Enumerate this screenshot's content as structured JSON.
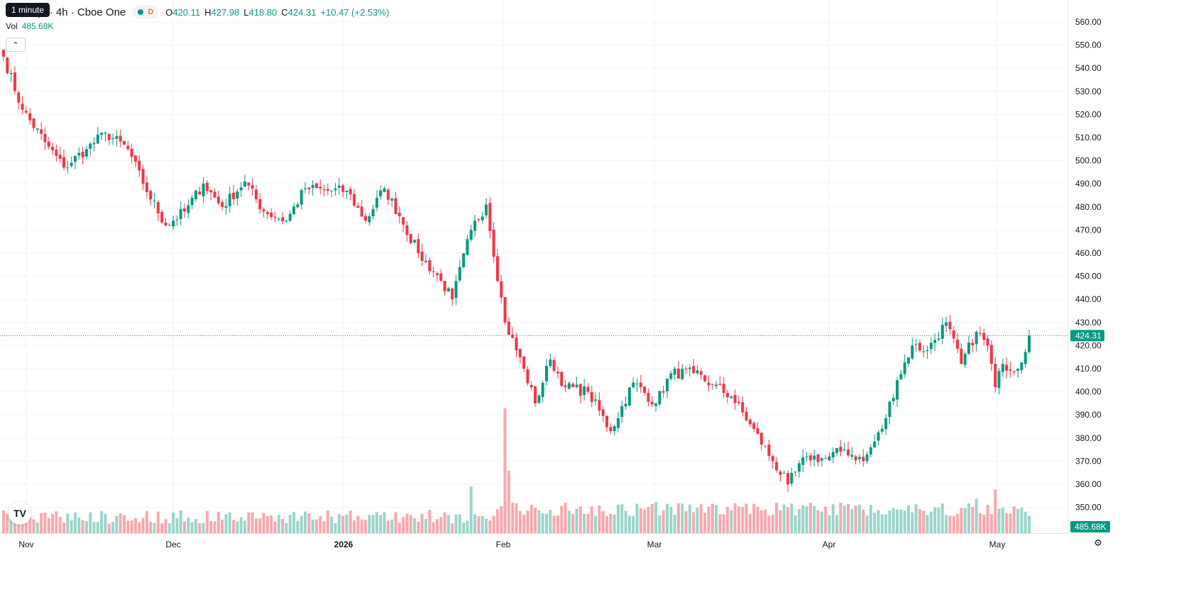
{
  "legend": {
    "tooltip": "1 minute",
    "symbol": "oft Corp. · 4h · Cboe One",
    "timeframe_letter": "D",
    "open_label": "O",
    "open": "420.11",
    "high_label": "H",
    "high": "427.98",
    "low_label": "L",
    "low": "418.80",
    "close_label": "C",
    "close": "424.31",
    "change": "+10.47 (+2.53%)",
    "vol_label": "Vol",
    "vol_value": "485.68K"
  },
  "colors": {
    "up": "#089981",
    "down": "#F23645",
    "up_vol": "#9bd5cb",
    "down_vol": "#f7a9ae",
    "grid": "#f0f3fa",
    "price_line": "#089981"
  },
  "icons": {
    "collapse": "chevron-up-icon",
    "logo": "tradingview-logo-icon",
    "settings": "gear-icon"
  },
  "chart_data": {
    "type": "candlestick",
    "interval": "4h",
    "y_axis": {
      "ticks": [
        350,
        360,
        370,
        380,
        390,
        400,
        410,
        420,
        430,
        440,
        450,
        460,
        470,
        480,
        490,
        500,
        510,
        520,
        530,
        540,
        550,
        560
      ],
      "range": [
        345,
        562
      ]
    },
    "x_axis_labels": [
      "Nov",
      "Dec",
      "2026",
      "Feb",
      "Mar",
      "Apr",
      "May"
    ],
    "last_price": 424.31,
    "last_price_label": "424.31",
    "volume_label": "485.68K",
    "keyframes": [
      {
        "i": 0,
        "p": 545
      },
      {
        "i": 5,
        "p": 522
      },
      {
        "i": 11,
        "p": 508
      },
      {
        "i": 16,
        "p": 497
      },
      {
        "i": 22,
        "p": 505
      },
      {
        "i": 27,
        "p": 512
      },
      {
        "i": 33,
        "p": 505
      },
      {
        "i": 37,
        "p": 490
      },
      {
        "i": 43,
        "p": 472
      },
      {
        "i": 48,
        "p": 478
      },
      {
        "i": 53,
        "p": 490
      },
      {
        "i": 58,
        "p": 480
      },
      {
        "i": 64,
        "p": 491
      },
      {
        "i": 69,
        "p": 478
      },
      {
        "i": 75,
        "p": 474
      },
      {
        "i": 80,
        "p": 488
      },
      {
        "i": 86,
        "p": 487
      },
      {
        "i": 91,
        "p": 487
      },
      {
        "i": 96,
        "p": 474
      },
      {
        "i": 101,
        "p": 488
      },
      {
        "i": 105,
        "p": 476
      },
      {
        "i": 110,
        "p": 460
      },
      {
        "i": 116,
        "p": 448
      },
      {
        "i": 119,
        "p": 440
      },
      {
        "i": 124,
        "p": 470
      },
      {
        "i": 128,
        "p": 481
      },
      {
        "i": 133,
        "p": 430
      },
      {
        "i": 138,
        "p": 410
      },
      {
        "i": 141,
        "p": 395
      },
      {
        "i": 145,
        "p": 414
      },
      {
        "i": 149,
        "p": 402
      },
      {
        "i": 155,
        "p": 400
      },
      {
        "i": 161,
        "p": 383
      },
      {
        "i": 167,
        "p": 404
      },
      {
        "i": 173,
        "p": 395
      },
      {
        "i": 177,
        "p": 408
      },
      {
        "i": 183,
        "p": 408
      },
      {
        "i": 188,
        "p": 403
      },
      {
        "i": 193,
        "p": 398
      },
      {
        "i": 198,
        "p": 386
      },
      {
        "i": 204,
        "p": 370
      },
      {
        "i": 208,
        "p": 360
      },
      {
        "i": 213,
        "p": 372
      },
      {
        "i": 218,
        "p": 371
      },
      {
        "i": 223,
        "p": 375
      },
      {
        "i": 228,
        "p": 370
      },
      {
        "i": 233,
        "p": 384
      },
      {
        "i": 237,
        "p": 405
      },
      {
        "i": 241,
        "p": 420
      },
      {
        "i": 245,
        "p": 418
      },
      {
        "i": 250,
        "p": 430
      },
      {
        "i": 254,
        "p": 412
      },
      {
        "i": 258,
        "p": 426
      },
      {
        "i": 261,
        "p": 420
      },
      {
        "i": 263,
        "p": 402
      },
      {
        "i": 265,
        "p": 412
      },
      {
        "i": 269,
        "p": 410
      },
      {
        "i": 272,
        "p": 424
      }
    ],
    "volume_spikes": [
      {
        "i": 133,
        "v": 8.0
      },
      {
        "i": 134,
        "v": 4.0
      },
      {
        "i": 258,
        "v": 2.2
      },
      {
        "i": 263,
        "v": 2.8
      },
      {
        "i": 124,
        "v": 3.0
      }
    ]
  }
}
